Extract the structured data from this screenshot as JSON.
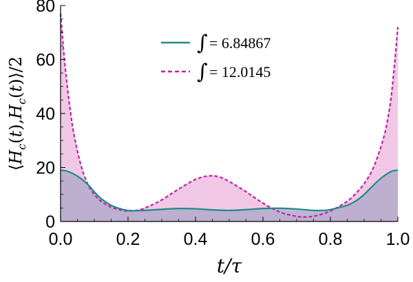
{
  "chart_data": {
    "type": "area",
    "xlabel": "t/τ",
    "ylabel": "⟨H_c(t),H_c(t)⟩/2",
    "xlim": [
      0,
      1
    ],
    "ylim": [
      0,
      80
    ],
    "x_ticks": [
      "0.0",
      "0.2",
      "0.4",
      "0.6",
      "0.8",
      "1.0"
    ],
    "y_ticks": [
      "0",
      "20",
      "40",
      "60",
      "80"
    ],
    "legend_position": "top-center",
    "series": [
      {
        "legend_text": "= 6.84867",
        "style": "solid",
        "color": "#1f8a8a",
        "fill_color": "#b3aacb",
        "points": [
          [
            0.0,
            19.0
          ],
          [
            0.02,
            18.6
          ],
          [
            0.05,
            16.8
          ],
          [
            0.08,
            13.8
          ],
          [
            0.1,
            11.0
          ],
          [
            0.12,
            8.5
          ],
          [
            0.15,
            6.0
          ],
          [
            0.18,
            4.6
          ],
          [
            0.2,
            4.1
          ],
          [
            0.22,
            4.0
          ],
          [
            0.25,
            4.1
          ],
          [
            0.3,
            4.5
          ],
          [
            0.35,
            4.8
          ],
          [
            0.4,
            4.7
          ],
          [
            0.45,
            4.3
          ],
          [
            0.5,
            4.1
          ],
          [
            0.55,
            4.4
          ],
          [
            0.6,
            4.8
          ],
          [
            0.65,
            4.9
          ],
          [
            0.7,
            4.6
          ],
          [
            0.75,
            4.1
          ],
          [
            0.78,
            4.1
          ],
          [
            0.8,
            4.4
          ],
          [
            0.85,
            6.0
          ],
          [
            0.88,
            8.0
          ],
          [
            0.9,
            10.0
          ],
          [
            0.92,
            12.5
          ],
          [
            0.95,
            16.0
          ],
          [
            0.98,
            18.5
          ],
          [
            1.0,
            19.0
          ]
        ]
      },
      {
        "legend_text": "= 12.0145",
        "style": "dashed",
        "color": "#c41ea0",
        "fill_color": "#f0c8e6",
        "points": [
          [
            0.0,
            77.0
          ],
          [
            0.01,
            62.0
          ],
          [
            0.02,
            50.0
          ],
          [
            0.03,
            40.0
          ],
          [
            0.04,
            32.0
          ],
          [
            0.06,
            21.0
          ],
          [
            0.08,
            14.0
          ],
          [
            0.1,
            10.0
          ],
          [
            0.12,
            7.5
          ],
          [
            0.15,
            5.3
          ],
          [
            0.18,
            4.2
          ],
          [
            0.2,
            3.9
          ],
          [
            0.23,
            4.2
          ],
          [
            0.26,
            5.5
          ],
          [
            0.3,
            8.0
          ],
          [
            0.35,
            12.0
          ],
          [
            0.4,
            15.6
          ],
          [
            0.44,
            16.9
          ],
          [
            0.47,
            16.5
          ],
          [
            0.5,
            14.8
          ],
          [
            0.55,
            11.0
          ],
          [
            0.6,
            6.8
          ],
          [
            0.65,
            3.5
          ],
          [
            0.7,
            1.9
          ],
          [
            0.73,
            1.7
          ],
          [
            0.76,
            2.2
          ],
          [
            0.8,
            3.9
          ],
          [
            0.85,
            7.5
          ],
          [
            0.88,
            11.0
          ],
          [
            0.9,
            14.0
          ],
          [
            0.92,
            18.0
          ],
          [
            0.94,
            24.0
          ],
          [
            0.96,
            32.0
          ],
          [
            0.97,
            38.0
          ],
          [
            0.98,
            46.0
          ],
          [
            0.99,
            58.0
          ],
          [
            1.0,
            72.0
          ]
        ]
      }
    ]
  }
}
